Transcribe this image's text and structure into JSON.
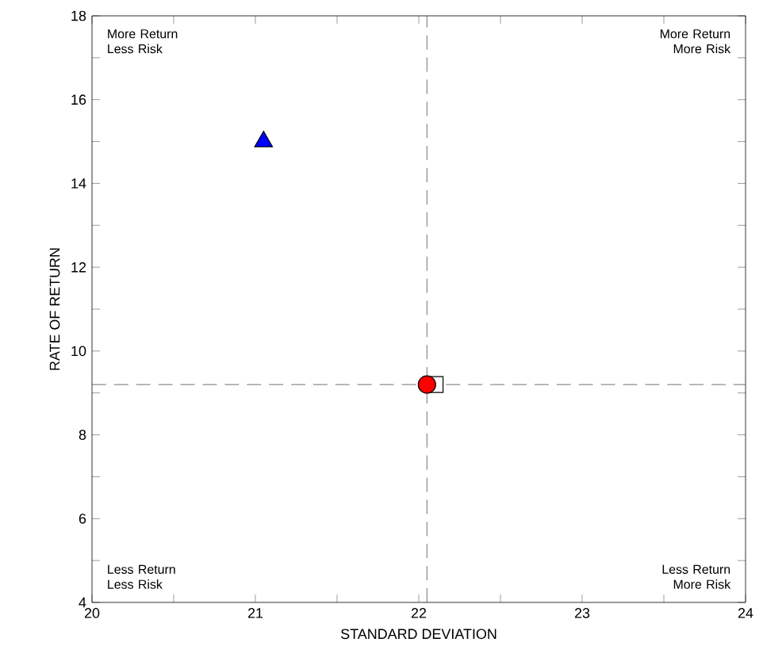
{
  "chart_data": {
    "type": "scatter",
    "xlabel": "STANDARD DEVIATION",
    "ylabel": "RATE OF RETURN",
    "xlim": [
      20,
      24
    ],
    "ylim": [
      4,
      18
    ],
    "xticks": [
      20,
      {
        "value": 20.5,
        "label": null
      },
      21,
      {
        "value": 21.5,
        "label": null
      },
      22,
      {
        "value": 22.5,
        "label": null
      },
      23,
      {
        "value": 23.5,
        "label": null
      },
      24
    ],
    "yticks": [
      4,
      {
        "value": 5,
        "label": null
      },
      6,
      {
        "value": 7,
        "label": null
      },
      8,
      {
        "value": 9,
        "label": null
      },
      10,
      {
        "value": 11,
        "label": null
      },
      12,
      {
        "value": 13,
        "label": null
      },
      14,
      {
        "value": 15,
        "label": null
      },
      16,
      {
        "value": 17,
        "label": null
      },
      18
    ],
    "grid": false,
    "series": [
      {
        "x": [
          21.05
        ],
        "values": [
          15.0
        ],
        "color": "#0000ff",
        "marker": "triangle"
      },
      {
        "x": [
          22.1
        ],
        "values": [
          9.2
        ],
        "color": "#ffffff",
        "marker": "square"
      },
      {
        "x": [
          22.05
        ],
        "values": [
          9.2
        ],
        "color": "#ff0000",
        "marker": "circle"
      }
    ],
    "ref_lines": [
      {
        "axis": "x",
        "value": 22.05,
        "line_style": "dashed"
      },
      {
        "axis": "y",
        "value": 9.2,
        "line_style": "dashed"
      }
    ],
    "annotations": [
      "More Return Less Risk",
      "More Return More Risk",
      "Less Return Less Risk",
      "Less Return More Risk"
    ]
  }
}
